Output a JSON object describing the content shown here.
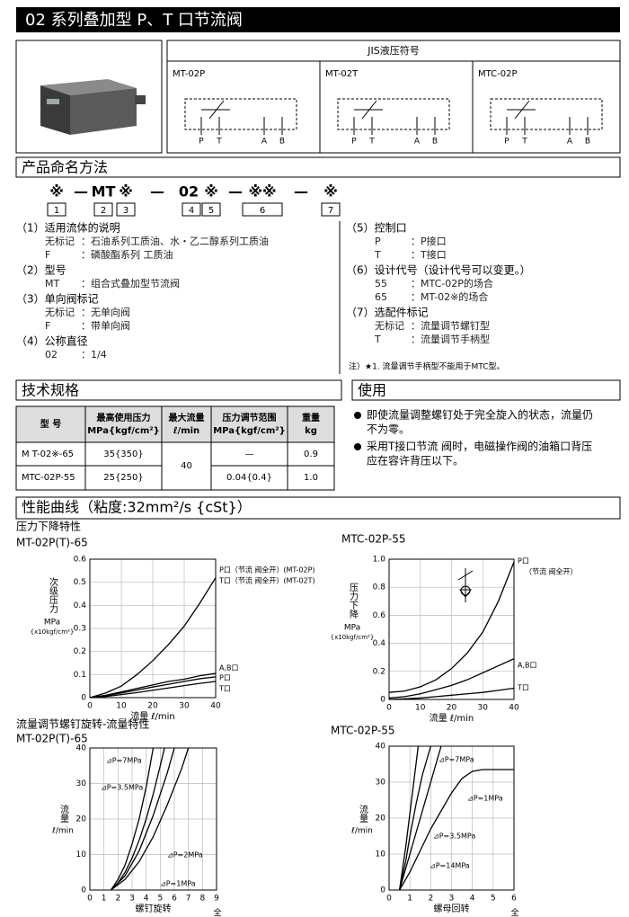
{
  "header": {
    "title": "02 系列叠加型  P、T 口节流阀"
  },
  "jis": {
    "title": "JIS液压符号",
    "symbols": [
      {
        "name": "MT-02P",
        "ports": [
          "P",
          "T",
          "A",
          "B"
        ]
      },
      {
        "name": "MT-02T",
        "ports": [
          "P",
          "T",
          "A",
          "B"
        ]
      },
      {
        "name": "MTC-02P",
        "ports": [
          "P",
          "T",
          "A",
          "B"
        ]
      }
    ]
  },
  "naming": {
    "title": "产品命名方法",
    "code": [
      "※",
      "—",
      "MT",
      "※",
      "—",
      "02",
      "※",
      "—",
      "※※",
      "—",
      "※"
    ],
    "boxes": [
      "1",
      "2",
      "3",
      "4",
      "5",
      "6",
      "7"
    ],
    "left": [
      {
        "heading": "（1）适用流体的说明",
        "items": [
          [
            "无标记",
            "：石油系列工质油、水・乙二醇系列工质油"
          ],
          [
            "F",
            "：磷酸酯系列 工质油"
          ]
        ]
      },
      {
        "heading": "（2）型号",
        "items": [
          [
            "MT",
            "：组合式叠加型节流阀"
          ]
        ]
      },
      {
        "heading": "（3）单向阀标记",
        "items": [
          [
            "无标记",
            "：无单向阀"
          ],
          [
            "F",
            "：带单向阀"
          ]
        ]
      },
      {
        "heading": "（4）公称直径",
        "items": [
          [
            "02",
            "：1/4"
          ]
        ]
      }
    ],
    "right": [
      {
        "heading": "（5）控制口",
        "items": [
          [
            "P",
            "：P接口"
          ],
          [
            "T",
            "：T接口"
          ]
        ]
      },
      {
        "heading": "（6）设计代号（设计代号可以变更。）",
        "items": [
          [
            "55",
            "：MTC-02P的场合"
          ],
          [
            "65",
            "：MT-02※的场合"
          ]
        ]
      },
      {
        "heading": "（7）选配件标记",
        "items": [
          [
            "无标记",
            "：流量调节螺钉型"
          ],
          [
            "T",
            "：流量调节手柄型"
          ]
        ]
      }
    ],
    "note": "注）★1. 流量调节手柄型不能用于MTC型。"
  },
  "spec": {
    "title": "技术规格",
    "columns": [
      [
        "型  号"
      ],
      [
        "最高使用压力",
        "MPa{kgf/cm²}"
      ],
      [
        "最大流量",
        "ℓ/min"
      ],
      [
        "压力调节范围",
        "MPa{kgf/cm²}"
      ],
      [
        "重量",
        "kg"
      ]
    ],
    "rows": [
      [
        "M T-02※-65",
        "35{350}",
        "—",
        "0.9"
      ],
      [
        "MTC-02P-55",
        "25{250}",
        "0.04{0.4}",
        "1.0"
      ]
    ],
    "max_flow": "40"
  },
  "usage": {
    "title": "使用",
    "items": [
      [
        "即使流量调整螺钉处于完全旋入的状态，流量仍",
        "不为零。"
      ],
      [
        "采用T接口节流 阀时，电磁操作阀的油箱口背压",
        "应在容许背压以下。"
      ]
    ]
  },
  "performance": {
    "title": "性能曲线（粘度:32mm²/s {cSt}）"
  },
  "chart_data": [
    {
      "type": "line",
      "section": "压力下降特性",
      "title": "MT-02P(T)-65",
      "xlabel": "流量 ℓ/min",
      "ylabel": "次级压力",
      "yunit": "MPa",
      "yunit2": "{x10kgf/cm²}",
      "x": [
        0,
        5,
        10,
        15,
        20,
        25,
        30,
        35,
        40
      ],
      "xlim": [
        0,
        40
      ],
      "xticks": [
        0,
        10,
        20,
        30,
        40
      ],
      "ylim": [
        0,
        0.6
      ],
      "yticks": [
        0,
        0.1,
        0.2,
        0.3,
        0.4,
        0.5,
        0.6
      ],
      "grid": true,
      "series": [
        {
          "name": "P口（节流 阀全开）(MT-02P)",
          "color": "#000",
          "values": [
            0,
            0.02,
            0.05,
            0.1,
            0.16,
            0.23,
            0.31,
            0.41,
            0.52
          ]
        },
        {
          "name": "A,B口",
          "color": "#000",
          "values": [
            0,
            0.01,
            0.025,
            0.04,
            0.055,
            0.07,
            0.08,
            0.095,
            0.105
          ]
        },
        {
          "name": "P口",
          "color": "#000",
          "values": [
            0,
            0.008,
            0.02,
            0.033,
            0.046,
            0.058,
            0.07,
            0.082,
            0.09
          ]
        },
        {
          "name": "T口",
          "color": "#000",
          "values": [
            0,
            0.005,
            0.013,
            0.022,
            0.032,
            0.042,
            0.052,
            0.062,
            0.07
          ]
        }
      ],
      "annotations": [
        "T口（节流 阀全开）(MT-02T)"
      ]
    },
    {
      "type": "line",
      "title": "MTC-02P-55",
      "xlabel": "流量 ℓ/min",
      "ylabel": "压力下降",
      "yunit": "MPa",
      "yunit2": "{x10kgf/cm²}",
      "x": [
        0,
        5,
        10,
        15,
        20,
        25,
        30,
        35,
        40
      ],
      "xlim": [
        0,
        40
      ],
      "xticks": [
        0,
        10,
        20,
        30,
        40
      ],
      "ylim": [
        0,
        1
      ],
      "yticks": [
        0,
        0.2,
        0.4,
        0.6,
        0.8,
        {
          "value": 1,
          "label": "1.0"
        }
      ],
      "grid": true,
      "series": [
        {
          "name": "P口",
          "color": "#000",
          "values": [
            0.05,
            0.06,
            0.09,
            0.14,
            0.22,
            0.33,
            0.48,
            0.7,
            0.98
          ]
        },
        {
          "name": "A,B口",
          "color": "#000",
          "values": [
            0.01,
            0.02,
            0.04,
            0.07,
            0.1,
            0.14,
            0.19,
            0.24,
            0.29
          ]
        },
        {
          "name": "T口",
          "color": "#000",
          "values": [
            0,
            0.005,
            0.01,
            0.02,
            0.03,
            0.04,
            0.05,
            0.065,
            0.08
          ]
        }
      ],
      "annotations": [
        "（节流 阀全开）"
      ]
    },
    {
      "type": "line",
      "section": "流量调节螺钉旋转-流量特性",
      "title": "MT-02P(T)-65",
      "xlabel": "螺钉旋转",
      "ylabel": "流量",
      "yunit": "ℓ/min",
      "xlim": [
        0,
        9
      ],
      "xticks": [
        0,
        1,
        2,
        3,
        4,
        5,
        6,
        7,
        8,
        9
      ],
      "ylim": [
        0,
        40
      ],
      "yticks": [
        0,
        10,
        20,
        30,
        40
      ],
      "grid": true,
      "series": [
        {
          "name": "⊿P=7MPa",
          "color": "#000",
          "x": [
            1.5,
            2,
            2.5,
            3,
            3.5,
            4,
            4.5
          ],
          "values": [
            0,
            3,
            7,
            13,
            20,
            29,
            40
          ]
        },
        {
          "name": "⊿P=3.5MPa",
          "color": "#000",
          "x": [
            1.5,
            2,
            2.5,
            3,
            3.5,
            4,
            4.5,
            5,
            5.3
          ],
          "values": [
            0,
            2,
            5,
            9,
            14,
            20,
            27,
            35,
            40
          ]
        },
        {
          "name": "⊿P=2MPa",
          "color": "#000",
          "x": [
            1.5,
            2.5,
            3.5,
            4.5,
            5.5,
            6
          ],
          "values": [
            0,
            4,
            11,
            21,
            33,
            40
          ]
        },
        {
          "name": "⊿P=1MPa",
          "color": "#000",
          "x": [
            1.5,
            2.5,
            3.5,
            4.5,
            5.5,
            6.5,
            7
          ],
          "values": [
            0,
            3,
            8,
            15,
            24,
            34,
            40
          ]
        }
      ],
      "annotations": [
        "全开"
      ]
    },
    {
      "type": "line",
      "title": "MTC-02P-55",
      "xlabel": "螺母回转",
      "ylabel": "流量",
      "yunit": "ℓ/min",
      "xlim": [
        0,
        6
      ],
      "xticks": [
        0,
        1,
        2,
        3,
        4,
        5,
        6
      ],
      "ylim": [
        0,
        40
      ],
      "yticks": [
        0,
        10,
        20,
        30,
        40
      ],
      "grid": true,
      "series": [
        {
          "name": "⊿P=7MPa",
          "color": "#000",
          "x": [
            0.5,
            0.8,
            1,
            1.3,
            1.6,
            2
          ],
          "values": [
            0,
            8,
            15,
            24,
            32,
            40
          ]
        },
        {
          "name": "⊿P=1MPa",
          "color": "#000",
          "x": [
            0.5,
            1,
            1.5,
            2,
            2.5,
            3,
            3.5,
            4,
            4.5,
            5,
            6
          ],
          "values": [
            0,
            5,
            11,
            17,
            22,
            27,
            31,
            33,
            33.5,
            33.5,
            33.5
          ]
        },
        {
          "name": "⊿P=3.5MPa",
          "color": "#000",
          "x": [
            0.5,
            1,
            1.5,
            2,
            2.5
          ],
          "values": [
            0,
            10,
            20,
            30,
            40
          ]
        },
        {
          "name": "⊿P=14MPa",
          "color": "#000",
          "x": [
            0.5,
            0.8,
            1.1,
            1.4
          ],
          "values": [
            0,
            12,
            26,
            40
          ]
        }
      ],
      "annotations": [
        "全开"
      ]
    }
  ]
}
